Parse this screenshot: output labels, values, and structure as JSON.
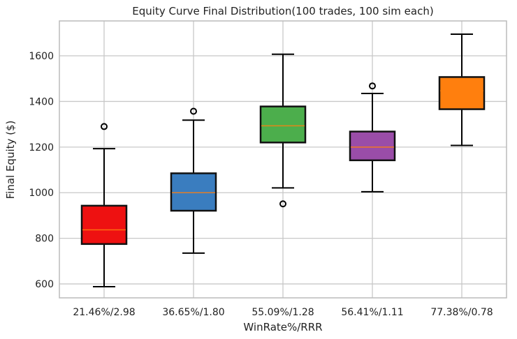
{
  "chart_data": {
    "type": "box",
    "title": "Equity Curve Final Distribution(100 trades, 100 sim each)",
    "xlabel": "WinRate%/RRR",
    "ylabel": "Final Equity ($)",
    "ylim": [
      539,
      1753
    ],
    "yticks": [
      600,
      800,
      1000,
      1200,
      1400,
      1600
    ],
    "grid": true,
    "median_color": "#ff7f0e",
    "categories": [
      "21.46%/2.98",
      "36.65%/1.80",
      "55.09%/1.28",
      "56.41%/1.11",
      "77.38%/0.78"
    ],
    "series": [
      {
        "color": "#ee1111",
        "whisker_low": 588,
        "q1": 775,
        "median": 837,
        "q3": 943,
        "whisker_high": 1193,
        "outliers": [
          1290
        ]
      },
      {
        "color": "#3a7dbf",
        "whisker_low": 735,
        "q1": 921,
        "median": 1000,
        "q3": 1085,
        "whisker_high": 1318,
        "outliers": [
          1357
        ]
      },
      {
        "color": "#4cae4c",
        "whisker_low": 1021,
        "q1": 1220,
        "median": 1293,
        "q3": 1378,
        "whisker_high": 1607,
        "outliers": [
          951
        ]
      },
      {
        "color": "#9a4da8",
        "whisker_low": 1004,
        "q1": 1142,
        "median": 1200,
        "q3": 1268,
        "whisker_high": 1435,
        "outliers": [
          1468
        ]
      },
      {
        "color": "#ff7f0e",
        "whisker_low": 1207,
        "q1": 1366,
        "median": 1447,
        "q3": 1507,
        "whisker_high": 1695,
        "outliers": []
      }
    ]
  }
}
